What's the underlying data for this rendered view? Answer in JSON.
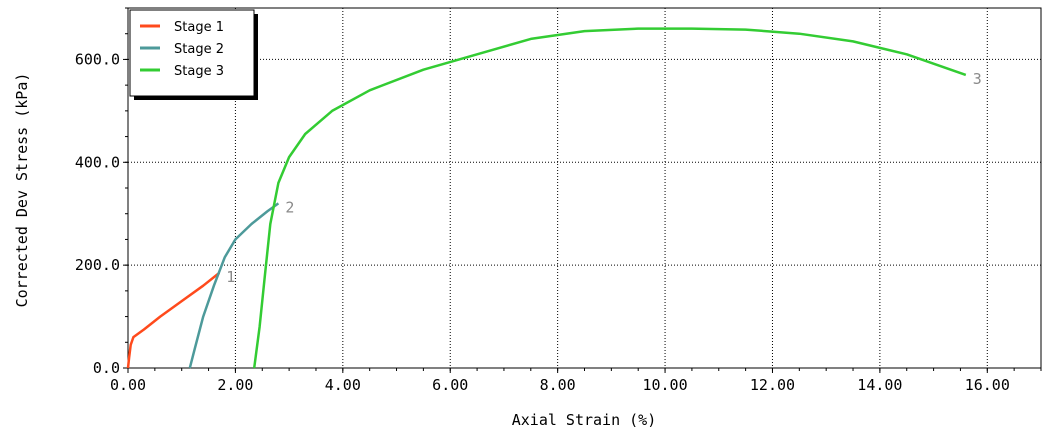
{
  "chart_data": {
    "type": "line",
    "xlabel": "Axial Strain (%)",
    "ylabel": "Corrected Dev Stress (kPa)",
    "xlim": [
      0,
      17
    ],
    "ylim": [
      0,
      700
    ],
    "xticks": [
      "0.00",
      "2.00",
      "4.00",
      "6.00",
      "8.00",
      "10.00",
      "12.00",
      "14.00",
      "16.00"
    ],
    "yticks": [
      "0.0",
      "200.0",
      "400.0",
      "600.0"
    ],
    "grid": true,
    "legend_position": "top-left",
    "series": [
      {
        "name": "Stage 1",
        "end_label": "1",
        "color": "#ff4a1c",
        "points": [
          [
            0,
            0
          ],
          [
            0.02,
            20
          ],
          [
            0.05,
            45
          ],
          [
            0.1,
            60
          ],
          [
            0.3,
            75
          ],
          [
            0.6,
            100
          ],
          [
            1.0,
            130
          ],
          [
            1.4,
            160
          ],
          [
            1.7,
            185
          ]
        ]
      },
      {
        "name": "Stage 2",
        "end_label": "2",
        "color": "#4d9a9a",
        "points": [
          [
            1.15,
            0
          ],
          [
            1.25,
            40
          ],
          [
            1.4,
            100
          ],
          [
            1.6,
            160
          ],
          [
            1.8,
            215
          ],
          [
            2.0,
            250
          ],
          [
            2.3,
            280
          ],
          [
            2.6,
            305
          ],
          [
            2.8,
            320
          ]
        ]
      },
      {
        "name": "Stage 3",
        "end_label": "3",
        "color": "#33cc33",
        "points": [
          [
            2.35,
            0
          ],
          [
            2.45,
            80
          ],
          [
            2.55,
            180
          ],
          [
            2.65,
            280
          ],
          [
            2.8,
            360
          ],
          [
            3.0,
            410
          ],
          [
            3.3,
            455
          ],
          [
            3.8,
            500
          ],
          [
            4.5,
            540
          ],
          [
            5.5,
            580
          ],
          [
            6.5,
            610
          ],
          [
            7.5,
            640
          ],
          [
            8.5,
            655
          ],
          [
            9.5,
            660
          ],
          [
            10.5,
            660
          ],
          [
            11.5,
            658
          ],
          [
            12.5,
            650
          ],
          [
            13.5,
            635
          ],
          [
            14.5,
            610
          ],
          [
            15.6,
            570
          ]
        ]
      }
    ]
  }
}
